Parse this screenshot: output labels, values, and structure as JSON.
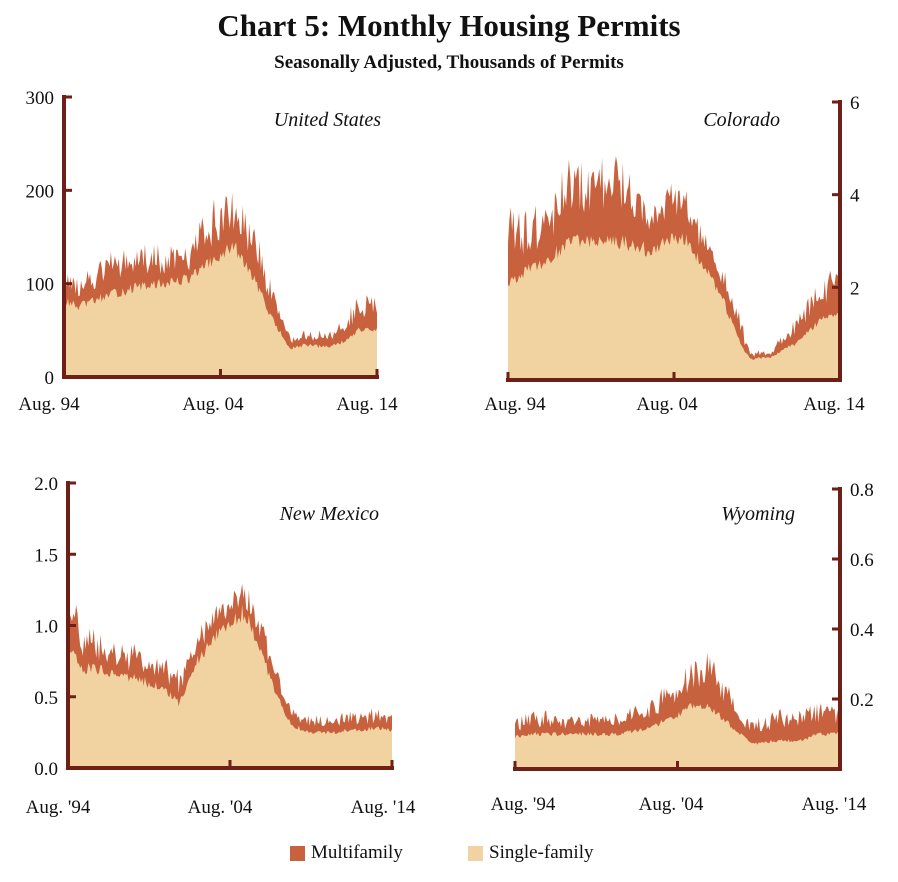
{
  "title": "Chart 5: Monthly Housing Permits",
  "subtitle": "Seasonally Adjusted, Thousands of Permits",
  "colors": {
    "multifamily": "#c8623e",
    "single_family": "#f0d3a0",
    "axis": "#6e1f16"
  },
  "legend": {
    "multifamily": "Multifamily",
    "single_family": "Single-family"
  },
  "chart_data": [
    {
      "type": "area",
      "stacked": true,
      "panel": "United States",
      "x_ticks": [
        "Aug. 94",
        "Aug. 04",
        "Aug. 14"
      ],
      "x_range": [
        1994.58,
        2014.67
      ],
      "y_ticks": [
        "0",
        "100",
        "200",
        "300"
      ],
      "ylim": [
        0,
        300
      ],
      "y_axis_side": "left",
      "series": [
        {
          "name": "Single-family",
          "x": [
            1994.58,
            1995.5,
            1997,
            1999,
            2001,
            2002.5,
            2004,
            2005.5,
            2006.3,
            2007,
            2008,
            2009.1,
            2010,
            2011.5,
            2012.5,
            2013.5,
            2014.67
          ],
          "values": [
            82,
            75,
            85,
            95,
            100,
            105,
            122,
            140,
            118,
            98,
            60,
            30,
            34,
            32,
            38,
            50,
            52
          ]
        },
        {
          "name": "Multifamily",
          "x": [
            1994.58,
            1995.5,
            1997,
            1999,
            2001,
            2002.5,
            2004,
            2005.5,
            2006.3,
            2007,
            2008,
            2009.1,
            2010,
            2011.5,
            2012.5,
            2013.5,
            2014.67
          ],
          "values": [
            25,
            22,
            27,
            33,
            25,
            23,
            42,
            40,
            45,
            35,
            25,
            10,
            10,
            11,
            18,
            25,
            30
          ]
        }
      ]
    },
    {
      "type": "area",
      "stacked": true,
      "panel": "Colorado",
      "x_ticks": [
        "Aug. 94",
        "Aug. 04",
        "Aug. 14"
      ],
      "x_range": [
        1994.58,
        2014.67
      ],
      "y_ticks": [
        "2",
        "4",
        "6"
      ],
      "ylim": [
        0,
        6
      ],
      "y_axis_side": "right",
      "series": [
        {
          "name": "Single-family",
          "x": [
            1994.58,
            1995.5,
            1997,
            1998.5,
            2000,
            2001.5,
            2003,
            2004.5,
            2005.5,
            2006.5,
            2007.5,
            2008.5,
            2009.2,
            2010.5,
            2012,
            2013.5,
            2014.67
          ],
          "values": [
            2.1,
            2.3,
            2.6,
            3.0,
            3.0,
            3.0,
            2.8,
            3.0,
            3.0,
            2.4,
            1.8,
            0.9,
            0.45,
            0.5,
            0.8,
            1.3,
            1.4
          ]
        },
        {
          "name": "Multifamily",
          "x": [
            1994.58,
            1995.5,
            1997,
            1998.5,
            2000,
            2001.5,
            2003,
            2004.5,
            2005.5,
            2006.5,
            2007.5,
            2008.5,
            2009.2,
            2010.5,
            2012,
            2013.5,
            2014.67
          ],
          "values": [
            1.2,
            0.8,
            0.9,
            1.2,
            1.2,
            1.4,
            0.7,
            0.9,
            0.8,
            0.5,
            0.4,
            0.5,
            0.1,
            0.1,
            0.4,
            0.6,
            0.7
          ]
        }
      ]
    },
    {
      "type": "area",
      "stacked": true,
      "panel": "New Mexico",
      "x_ticks": [
        "Aug. '94",
        "Aug. '04",
        "Aug. '14"
      ],
      "x_range": [
        1994.58,
        2014.67
      ],
      "y_ticks": [
        "0.0",
        "0.5",
        "1.0",
        "1.5",
        "2.0"
      ],
      "ylim": [
        0,
        2
      ],
      "y_axis_side": "left",
      "series": [
        {
          "name": "Single-family",
          "x": [
            1994.58,
            1995.5,
            1997,
            1999,
            2000.5,
            2001.5,
            2002.5,
            2004,
            2005.5,
            2006.5,
            2007.5,
            2008.5,
            2009.5,
            2011,
            2012.5,
            2014,
            2014.67
          ],
          "values": [
            0.85,
            0.7,
            0.68,
            0.62,
            0.55,
            0.45,
            0.75,
            0.95,
            1.1,
            0.85,
            0.5,
            0.3,
            0.25,
            0.25,
            0.27,
            0.28,
            0.26
          ]
        },
        {
          "name": "Multifamily",
          "x": [
            1994.58,
            1995.5,
            1997,
            1999,
            2000.5,
            2001.5,
            2002.5,
            2004,
            2005.5,
            2006.5,
            2007.5,
            2008.5,
            2009.5,
            2011,
            2012.5,
            2014,
            2014.67
          ],
          "values": [
            0.3,
            0.2,
            0.15,
            0.15,
            0.15,
            0.15,
            0.12,
            0.15,
            0.15,
            0.15,
            0.12,
            0.08,
            0.08,
            0.08,
            0.1,
            0.08,
            0.08
          ]
        }
      ]
    },
    {
      "type": "area",
      "stacked": true,
      "panel": "Wyoming",
      "x_ticks": [
        "Aug. '94",
        "Aug. '04",
        "Aug. '14"
      ],
      "x_range": [
        1994.58,
        2014.67
      ],
      "y_ticks": [
        "0.2",
        "0.4",
        "0.6",
        "0.8"
      ],
      "ylim": [
        0,
        0.8
      ],
      "y_axis_side": "right",
      "series": [
        {
          "name": "Single-family",
          "x": [
            1994.58,
            1995.5,
            1997,
            1999,
            2001,
            2003,
            2004.5,
            2005.5,
            2006.5,
            2007.5,
            2008.5,
            2009.2,
            2010.5,
            2012,
            2013.5,
            2014.67
          ],
          "values": [
            0.09,
            0.1,
            0.1,
            0.1,
            0.1,
            0.12,
            0.15,
            0.18,
            0.18,
            0.14,
            0.1,
            0.07,
            0.08,
            0.08,
            0.1,
            0.1
          ]
        },
        {
          "name": "Multifamily",
          "x": [
            1994.58,
            1995.5,
            1997,
            1999,
            2001,
            2003,
            2004.5,
            2005.5,
            2006.5,
            2007.5,
            2008.5,
            2009.2,
            2010.5,
            2012,
            2013.5,
            2014.67
          ],
          "values": [
            0.03,
            0.05,
            0.04,
            0.04,
            0.04,
            0.05,
            0.08,
            0.09,
            0.1,
            0.08,
            0.05,
            0.04,
            0.06,
            0.06,
            0.06,
            0.05
          ]
        }
      ]
    }
  ]
}
